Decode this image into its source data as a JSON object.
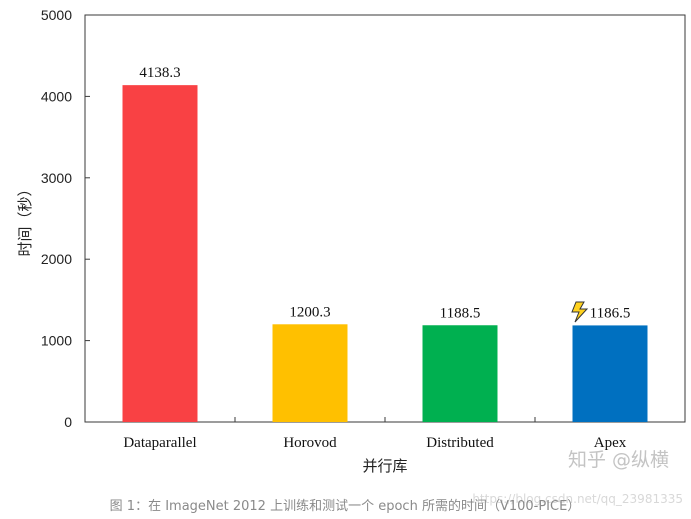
{
  "chart_data": {
    "type": "bar",
    "categories": [
      "Dataparallel",
      "Horovod",
      "Distributed",
      "Apex"
    ],
    "values": [
      4138.3,
      1200.3,
      1188.5,
      1186.5
    ],
    "data_labels": [
      "4138.3",
      "1200.3",
      "1188.5",
      "1186.5"
    ],
    "bar_colors": [
      "#f94144",
      "#ffc000",
      "#00b050",
      "#0070c0"
    ],
    "title": "",
    "xlabel": "并行库",
    "ylabel": "时间（秒）",
    "ylim": [
      0,
      5000
    ],
    "yticks": [
      "0",
      "1000",
      "2000",
      "3000",
      "4000",
      "5000"
    ],
    "grid": false,
    "legend": "none"
  },
  "caption": "图 1：在 ImageNet 2012 上训练和测试一个 epoch 所需的时间（V100-PICE）",
  "watermarks": {
    "zhihu": "知乎 @纵横",
    "csdn": "https://blog.csdn.net/qq_23981335"
  },
  "icons": {
    "apex_marker": "lightning-icon"
  }
}
